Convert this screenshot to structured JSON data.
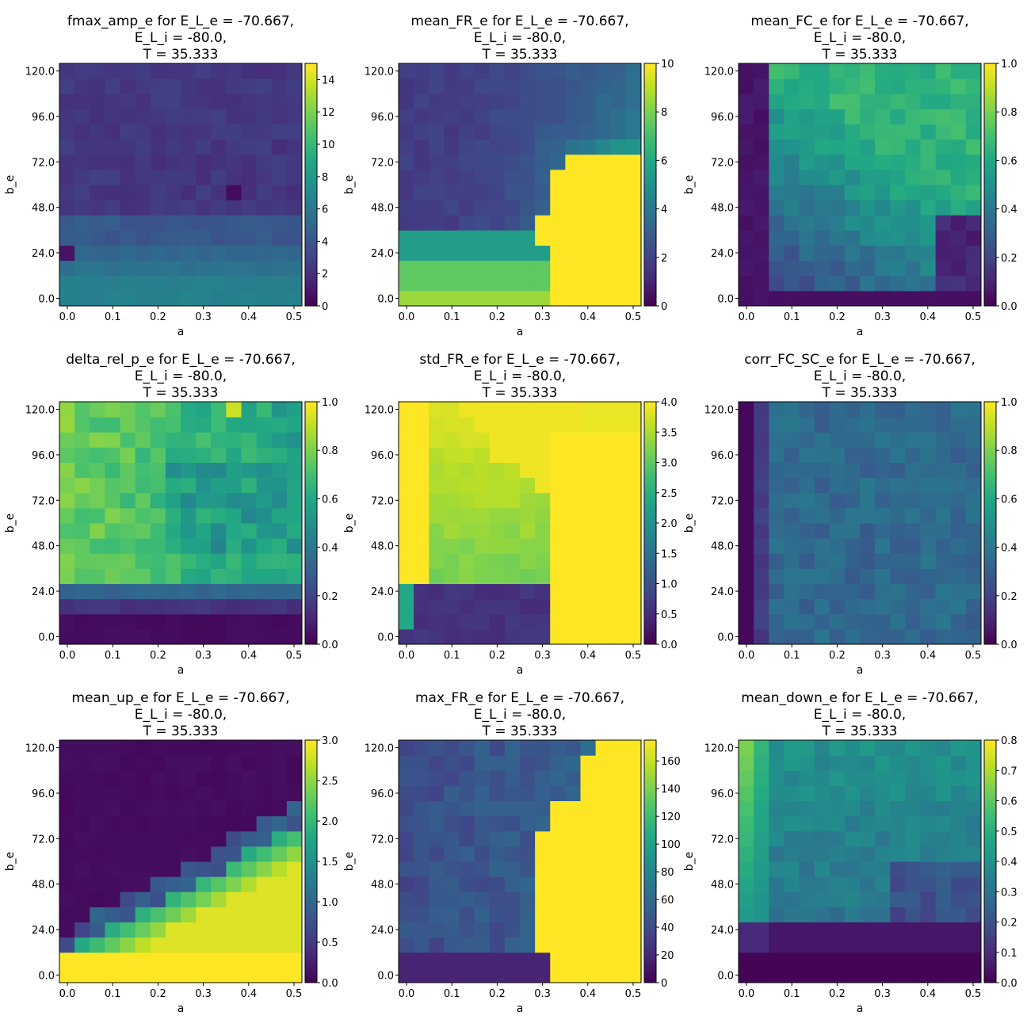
{
  "chart_data": [
    {
      "type": "heatmap",
      "title": [
        "fmax_amp_e for E_L_e = -70.667,",
        "E_L_i = -80.0,",
        "T = 35.333"
      ],
      "xlabel": "a",
      "ylabel": "b_e",
      "xticks": [
        "0.0",
        "0.1",
        "0.2",
        "0.3",
        "0.4",
        "0.5"
      ],
      "yticks": [
        "0.0",
        "24.0",
        "48.0",
        "72.0",
        "96.0",
        "120.0"
      ],
      "colorbar_range": [
        0,
        15
      ],
      "colorbar_ticks": [
        "0",
        "2",
        "4",
        "6",
        "8",
        "10",
        "12",
        "14"
      ],
      "colormap": "viridis",
      "grid": false,
      "shape": "lowAmp",
      "values_range": [
        0,
        15
      ]
    },
    {
      "type": "heatmap",
      "title": [
        "mean_FR_e for E_L_e = -70.667,",
        "E_L_i = -80.0,",
        "T = 35.333"
      ],
      "xlabel": "a",
      "ylabel": "b_e",
      "xticks": [
        "0.0",
        "0.1",
        "0.2",
        "0.3",
        "0.4",
        "0.5"
      ],
      "yticks": [
        "0.0",
        "24.0",
        "48.0",
        "72.0",
        "96.0",
        "120.0"
      ],
      "colorbar_range": [
        0,
        10
      ],
      "colorbar_ticks": [
        "0",
        "2",
        "4",
        "6",
        "8",
        "10"
      ],
      "colormap": "viridis",
      "grid": false,
      "shape": "meanFR"
    },
    {
      "type": "heatmap",
      "title": [
        "mean_FC_e for E_L_e = -70.667,",
        "E_L_i = -80.0,",
        "T = 35.333"
      ],
      "xlabel": "a",
      "ylabel": "b_e",
      "xticks": [
        "0.0",
        "0.1",
        "0.2",
        "0.3",
        "0.4",
        "0.5"
      ],
      "yticks": [
        "0.0",
        "24.0",
        "48.0",
        "72.0",
        "96.0",
        "120.0"
      ],
      "colorbar_range": [
        0,
        1
      ],
      "colorbar_ticks": [
        "0.0",
        "0.2",
        "0.4",
        "0.6",
        "0.8",
        "1.0"
      ],
      "colormap": "viridis",
      "grid": false,
      "shape": "meanFC"
    },
    {
      "type": "heatmap",
      "title": [
        "delta_rel_p_e for E_L_e = -70.667,",
        "E_L_i = -80.0,",
        "T = 35.333"
      ],
      "xlabel": "a",
      "ylabel": "b_e",
      "xticks": [
        "0.0",
        "0.1",
        "0.2",
        "0.3",
        "0.4",
        "0.5"
      ],
      "yticks": [
        "0.0",
        "24.0",
        "48.0",
        "72.0",
        "96.0",
        "120.0"
      ],
      "colorbar_range": [
        0,
        1
      ],
      "colorbar_ticks": [
        "0.0",
        "0.2",
        "0.4",
        "0.6",
        "0.8",
        "1.0"
      ],
      "colormap": "viridis",
      "grid": false,
      "shape": "deltaRel"
    },
    {
      "type": "heatmap",
      "title": [
        "std_FR_e for E_L_e = -70.667,",
        "E_L_i = -80.0,",
        "T = 35.333"
      ],
      "xlabel": "a",
      "ylabel": "b_e",
      "xticks": [
        "0.0",
        "0.1",
        "0.2",
        "0.3",
        "0.4",
        "0.5"
      ],
      "yticks": [
        "0.0",
        "24.0",
        "48.0",
        "72.0",
        "96.0",
        "120.0"
      ],
      "colorbar_range": [
        0,
        4
      ],
      "colorbar_ticks": [
        "0.0",
        "0.5",
        "1.0",
        "1.5",
        "2.0",
        "2.5",
        "3.0",
        "3.5",
        "4.0"
      ],
      "colormap": "viridis",
      "grid": false,
      "shape": "stdFR"
    },
    {
      "type": "heatmap",
      "title": [
        "corr_FC_SC_e for E_L_e = -70.667,",
        "E_L_i = -80.0,",
        "T = 35.333"
      ],
      "xlabel": "a",
      "ylabel": "b_e",
      "xticks": [
        "0.0",
        "0.1",
        "0.2",
        "0.3",
        "0.4",
        "0.5"
      ],
      "yticks": [
        "0.0",
        "24.0",
        "48.0",
        "72.0",
        "96.0",
        "120.0"
      ],
      "colorbar_range": [
        0,
        1
      ],
      "colorbar_ticks": [
        "0.0",
        "0.2",
        "0.4",
        "0.6",
        "0.8",
        "1.0"
      ],
      "colormap": "viridis",
      "grid": false,
      "shape": "corr"
    },
    {
      "type": "heatmap",
      "title": [
        "mean_up_e for E_L_e = -70.667,",
        "E_L_i = -80.0,",
        "T = 35.333"
      ],
      "xlabel": "a",
      "ylabel": "b_e",
      "xticks": [
        "0.0",
        "0.1",
        "0.2",
        "0.3",
        "0.4",
        "0.5"
      ],
      "yticks": [
        "0.0",
        "24.0",
        "48.0",
        "72.0",
        "96.0",
        "120.0"
      ],
      "colorbar_range": [
        0,
        3
      ],
      "colorbar_ticks": [
        "0.0",
        "0.5",
        "1.0",
        "1.5",
        "2.0",
        "2.5",
        "3.0"
      ],
      "colormap": "viridis",
      "grid": false,
      "shape": "meanUp"
    },
    {
      "type": "heatmap",
      "title": [
        "max_FR_e for E_L_e = -70.667,",
        "E_L_i = -80.0,",
        "T = 35.333"
      ],
      "xlabel": "a",
      "ylabel": "b_e",
      "xticks": [
        "0.0",
        "0.1",
        "0.2",
        "0.3",
        "0.4",
        "0.5"
      ],
      "yticks": [
        "0.0",
        "24.0",
        "48.0",
        "72.0",
        "96.0",
        "120.0"
      ],
      "colorbar_range": [
        0,
        175
      ],
      "colorbar_ticks": [
        "0",
        "20",
        "40",
        "60",
        "80",
        "100",
        "120",
        "140",
        "160"
      ],
      "colormap": "viridis",
      "grid": false,
      "shape": "maxFR"
    },
    {
      "type": "heatmap",
      "title": [
        "mean_down_e for E_L_e = -70.667,",
        "E_L_i = -80.0,",
        "T = 35.333"
      ],
      "xlabel": "a",
      "ylabel": "b_e",
      "xticks": [
        "0.0",
        "0.1",
        "0.2",
        "0.3",
        "0.4",
        "0.5"
      ],
      "yticks": [
        "0.0",
        "24.0",
        "48.0",
        "72.0",
        "96.0",
        "120.0"
      ],
      "colorbar_range": [
        0,
        0.8
      ],
      "colorbar_ticks": [
        "0.0",
        "0.1",
        "0.2",
        "0.3",
        "0.4",
        "0.5",
        "0.6",
        "0.7",
        "0.8"
      ],
      "colormap": "viridis",
      "grid": false,
      "shape": "meanDown"
    }
  ]
}
